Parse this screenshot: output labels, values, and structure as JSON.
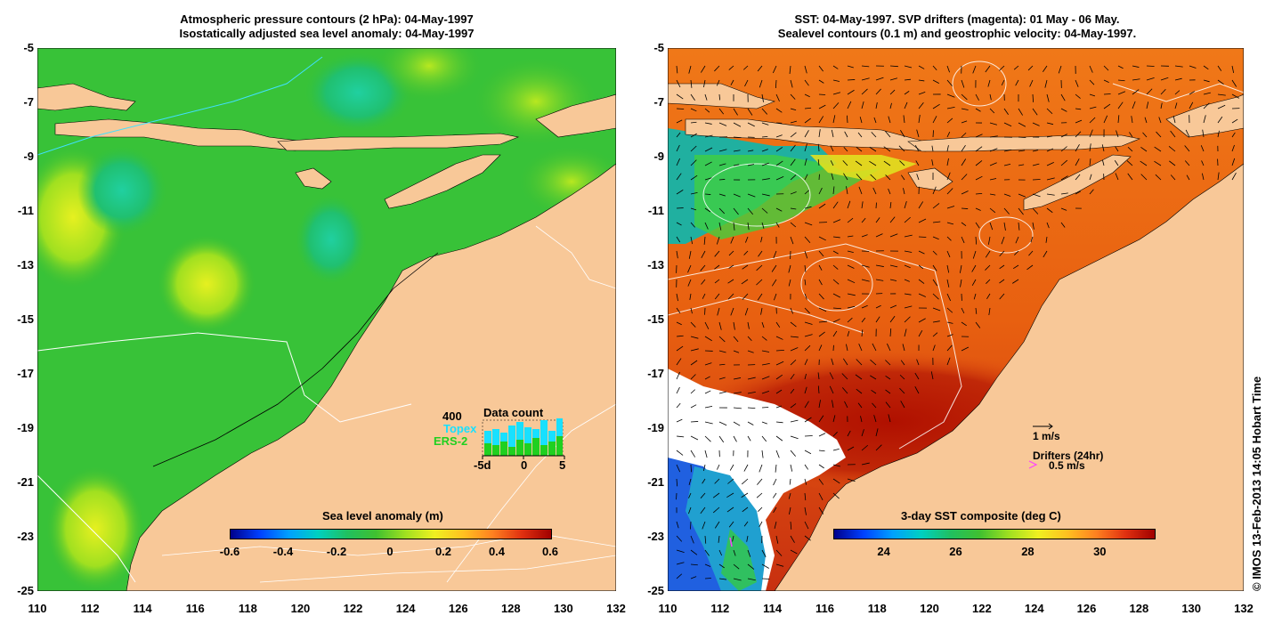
{
  "left_panel": {
    "title_line1": "Atmospheric pressure contours (2 hPa): 04-May-1997",
    "title_line2": "Isostatically adjusted sea level anomaly: 04-May-1997",
    "colorbar": {
      "title": "Sea level anomaly (m)",
      "ticks": [
        "-0.6",
        "-0.4",
        "-0.2",
        "0",
        "0.2",
        "0.4",
        "0.6"
      ]
    },
    "data_count": {
      "title": "Data count",
      "max_label": "400",
      "series_topex": "Topex",
      "series_ers2": "ERS-2",
      "x_ticks": [
        "-5d",
        "0",
        "5"
      ],
      "topex_color": "#18e0ff",
      "ers2_color": "#20d020"
    }
  },
  "right_panel": {
    "title_line1": "SST: 04-May-1997. SVP drifters (magenta): 01 May - 06 May.",
    "title_line2": "Sealevel contours (0.1 m) and geostrophic velocity: 04-May-1997.",
    "colorbar": {
      "title": "3-day SST composite (deg C)",
      "ticks": [
        "24",
        "26",
        "28",
        "30"
      ]
    },
    "velocity_scale": "1 m/s",
    "drifters_label": "Drifters (24hr)",
    "drifter_scale": "0.5 m/s",
    "drifter_color": "#ff40ff"
  },
  "axes": {
    "y_ticks": [
      "-5",
      "-7",
      "-9",
      "-11",
      "-13",
      "-15",
      "-17",
      "-19",
      "-21",
      "-23",
      "-25"
    ],
    "x_ticks": [
      "110",
      "112",
      "114",
      "116",
      "118",
      "120",
      "122",
      "124",
      "126",
      "128",
      "130",
      "132"
    ]
  },
  "credit": "© IMOS 13-Feb-2013 14:05 Hobart Time",
  "colors": {
    "land": "#f8c898",
    "sea_green": "#30c030"
  }
}
